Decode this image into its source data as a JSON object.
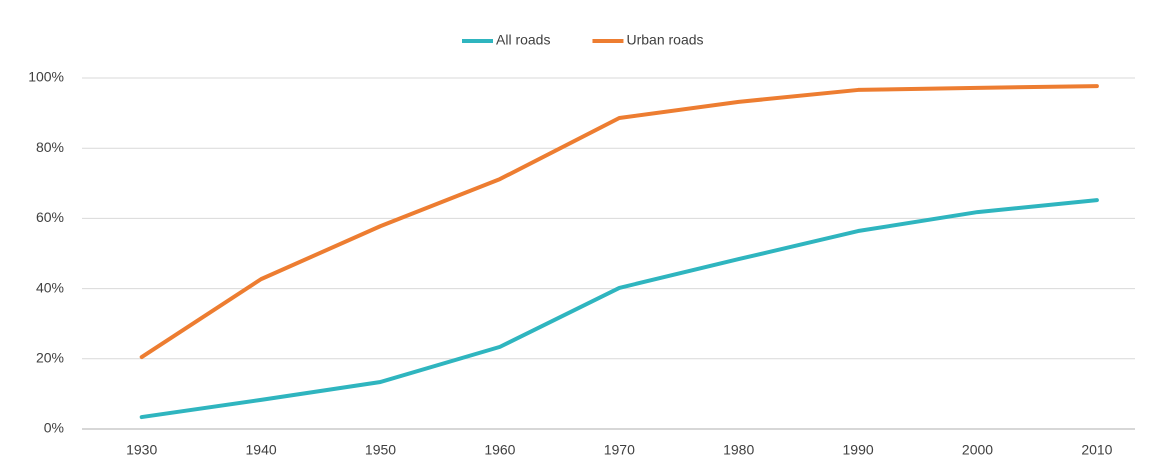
{
  "chart_data": {
    "type": "line",
    "categories": [
      "1930",
      "1940",
      "1950",
      "1960",
      "1970",
      "1980",
      "1990",
      "2000",
      "2010"
    ],
    "series": [
      {
        "name": "All roads",
        "color": "#2fb5bf",
        "values": [
          3.4,
          8.3,
          13.4,
          23.4,
          40.2,
          48.4,
          56.4,
          61.8,
          65.2
        ]
      },
      {
        "name": "Urban roads",
        "color": "#ed7d31",
        "values": [
          20.5,
          42.7,
          57.8,
          71.2,
          88.6,
          93.2,
          96.6,
          97.2,
          97.7
        ]
      }
    ],
    "ylim": [
      0,
      100
    ],
    "yticks": [
      {
        "value": 0,
        "label": "0%"
      },
      {
        "value": 20,
        "label": "20%"
      },
      {
        "value": 40,
        "label": "40%"
      },
      {
        "value": 60,
        "label": "60%"
      },
      {
        "value": 80,
        "label": "80%"
      },
      {
        "value": 100,
        "label": "100%"
      }
    ],
    "grid": true,
    "legend": "top"
  }
}
